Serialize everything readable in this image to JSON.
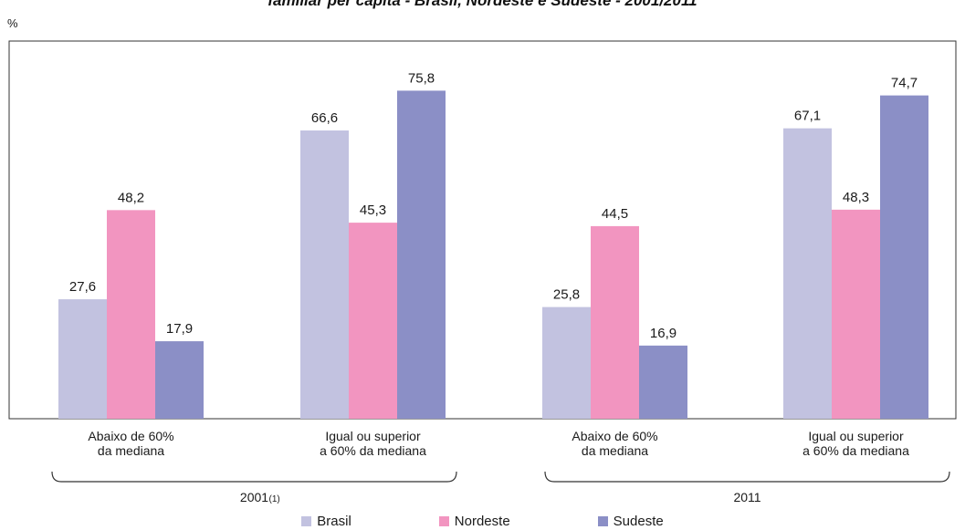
{
  "chart_data": {
    "type": "bar",
    "title": "familiar per capita - Brasil, Nordeste e Sudeste - 2001/2011",
    "unit": "%",
    "ylim": [
      0,
      80
    ],
    "groups": [
      {
        "label": "2001",
        "note": "(1)",
        "categories": [
          {
            "label_lines": [
              "Abaixo de 60%",
              "da mediana"
            ],
            "values": [
              27.6,
              48.2,
              17.9
            ],
            "value_labels": [
              "27,6",
              "48,2",
              "17,9"
            ]
          },
          {
            "label_lines": [
              "Igual ou superior",
              "a 60% da mediana"
            ],
            "values": [
              66.6,
              45.3,
              75.8
            ],
            "value_labels": [
              "66,6",
              "45,3",
              "75,8"
            ]
          }
        ]
      },
      {
        "label": "2011",
        "note": "",
        "categories": [
          {
            "label_lines": [
              "Abaixo de 60%",
              "da mediana"
            ],
            "values": [
              25.8,
              44.5,
              16.9
            ],
            "value_labels": [
              "25,8",
              "44,5",
              "16,9"
            ]
          },
          {
            "label_lines": [
              "Igual ou superior",
              "a 60% da mediana"
            ],
            "values": [
              67.1,
              48.3,
              74.7
            ],
            "value_labels": [
              "67,1",
              "48,3",
              "74,7"
            ]
          }
        ]
      }
    ],
    "series": [
      {
        "name": "Brasil",
        "color": "#c2c2e0"
      },
      {
        "name": "Nordeste",
        "color": "#f295c0"
      },
      {
        "name": "Sudeste",
        "color": "#8b8fc6"
      }
    ]
  }
}
